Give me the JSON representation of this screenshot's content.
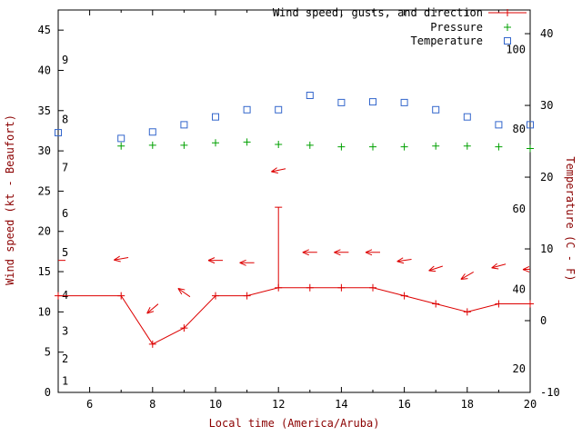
{
  "colors": {
    "background": "#ffffff",
    "border": "#000000",
    "tick_label": "#000000",
    "axis_label": "#8b0000"
  },
  "chart_data": {
    "type": "line",
    "title": "",
    "xlabel": "Local time (America/Aruba)",
    "ylabel_left": "Wind speed (kt - Beaufort)",
    "ylabel_right": "Temperature (C - F)",
    "grid": false,
    "legend_position": "top-right-inside",
    "legend": [
      {
        "label": "Wind speed, gusts, and direction"
      },
      {
        "label": "Pressure"
      },
      {
        "label": "Temperature"
      }
    ],
    "x_range": [
      5,
      20
    ],
    "x_major_ticks": [
      6,
      8,
      10,
      12,
      14,
      16,
      18,
      20
    ],
    "x_minor_ticks": [
      7,
      9,
      11,
      13,
      15,
      17,
      19
    ],
    "y_left_range_kt": [
      0,
      47.5
    ],
    "y_left_ticks_kt": [
      0,
      5,
      10,
      15,
      20,
      25,
      30,
      35,
      40,
      45
    ],
    "beaufort_labels": [
      {
        "label": "1",
        "kt": 1.4
      },
      {
        "label": "2",
        "kt": 4.2
      },
      {
        "label": "3",
        "kt": 7.6
      },
      {
        "label": "4",
        "kt": 12.1
      },
      {
        "label": "5",
        "kt": 17.4
      },
      {
        "label": "6",
        "kt": 22.2
      },
      {
        "label": "7",
        "kt": 27.9
      },
      {
        "label": "8",
        "kt": 33.9
      },
      {
        "label": "9",
        "kt": 41.3
      }
    ],
    "y_right_range_c": [
      -10,
      43.3
    ],
    "y_right_ticks_c": [
      -10,
      0,
      10,
      20,
      30,
      40
    ],
    "fahrenheit_labels": [
      {
        "label": "20",
        "c": -6.7
      },
      {
        "label": "40",
        "c": 4.4
      },
      {
        "label": "60",
        "c": 15.6
      },
      {
        "label": "80",
        "c": 26.7
      },
      {
        "label": "100",
        "c": 37.8
      }
    ],
    "series": {
      "wind": {
        "name": "Wind speed, gusts, and direction",
        "color": "#dd0000",
        "x": [
          5,
          7,
          8,
          9,
          10,
          11,
          12,
          13,
          14,
          15,
          16,
          17,
          18,
          19,
          20
        ],
        "speed_kt": [
          12,
          12,
          6,
          8,
          12,
          12,
          13,
          13,
          13,
          13,
          12,
          11,
          10,
          11,
          11
        ],
        "gust_kt": [
          12,
          12,
          6,
          8,
          12,
          12,
          23,
          13,
          13,
          13,
          12,
          11,
          10,
          11,
          11
        ]
      },
      "wind_direction_arrows": {
        "name": "Wind direction",
        "color": "#dd0000",
        "note": "arrows plotted above the wind trace; angle in degrees clockwise from pointing-right",
        "x": [
          5,
          7,
          8,
          9,
          10,
          11,
          12,
          13,
          14,
          15,
          16,
          17,
          18,
          19,
          20
        ],
        "y_kt": [
          16.4,
          16.6,
          10.4,
          12.4,
          16.4,
          16.1,
          27.6,
          17.4,
          17.4,
          17.4,
          16.4,
          15.4,
          14.5,
          15.7,
          15.3
        ],
        "angle_deg": [
          180,
          170,
          140,
          215,
          180,
          180,
          168,
          180,
          180,
          180,
          172,
          162,
          150,
          165,
          178
        ]
      },
      "pressure": {
        "name": "Pressure",
        "color": "#00a000",
        "axis": "hidden (no visible pressure scale; values are plotted positions on the kt axis)",
        "x": [
          7,
          8,
          9,
          10,
          11,
          12,
          13,
          14,
          15,
          16,
          17,
          18,
          19,
          20
        ],
        "y_plot_kt": [
          30.6,
          30.7,
          30.7,
          31.0,
          31.1,
          30.8,
          30.7,
          30.5,
          30.5,
          30.5,
          30.6,
          30.6,
          30.5,
          30.3
        ]
      },
      "temperature": {
        "name": "Temperature",
        "color": "#3366cc",
        "x": [
          5,
          7,
          8,
          9,
          10,
          11,
          12,
          13,
          14,
          15,
          16,
          17,
          18,
          19,
          20
        ],
        "c": [
          26.2,
          25.4,
          26.3,
          27.3,
          28.4,
          29.4,
          29.4,
          31.4,
          30.4,
          30.5,
          30.4,
          29.4,
          28.4,
          27.3,
          27.3
        ]
      }
    }
  }
}
